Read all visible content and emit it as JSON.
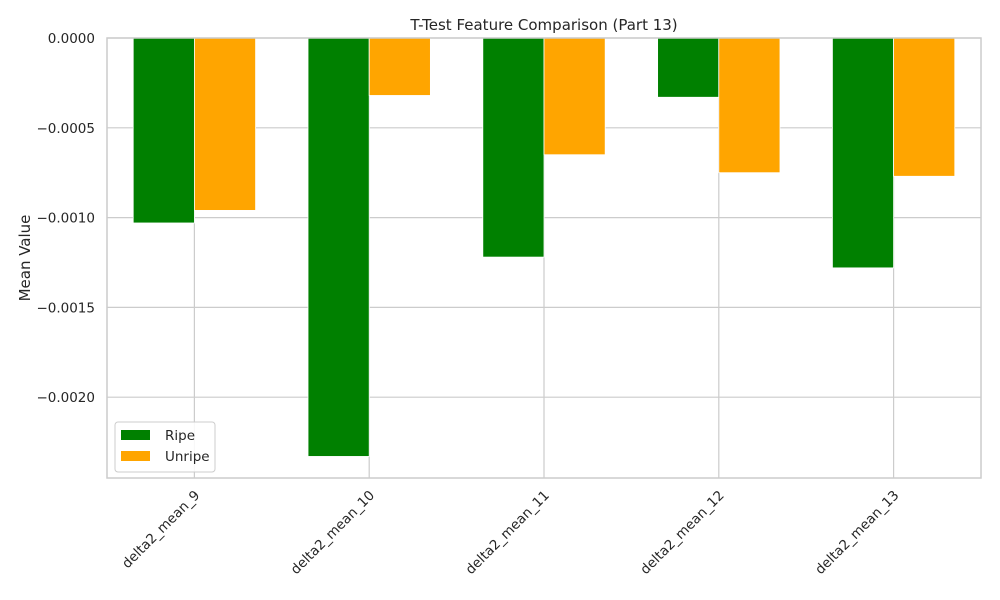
{
  "chart_data": {
    "type": "bar",
    "title": "T-Test Feature Comparison (Part 13)",
    "xlabel": "",
    "ylabel": "Mean Value",
    "categories": [
      "delta2_mean_9",
      "delta2_mean_10",
      "delta2_mean_11",
      "delta2_mean_12",
      "delta2_mean_13"
    ],
    "series": [
      {
        "name": "Ripe",
        "color": "#008000",
        "values": [
          -0.00103,
          -0.00233,
          -0.00122,
          -0.00033,
          -0.00128
        ]
      },
      {
        "name": "Unripe",
        "color": "#FFA500",
        "values": [
          -0.00096,
          -0.00032,
          -0.00065,
          -0.00075,
          -0.00077
        ]
      }
    ],
    "ylim": [
      -0.00245,
      0.0
    ],
    "yticks": [
      0.0,
      -0.0005,
      -0.001,
      -0.0015,
      -0.002
    ],
    "ytick_labels": [
      "0.0000",
      "−0.0005",
      "−0.0010",
      "−0.0015",
      "−0.0020"
    ],
    "xtick_rotation": 45,
    "grid": true,
    "legend_position": "lower left"
  }
}
